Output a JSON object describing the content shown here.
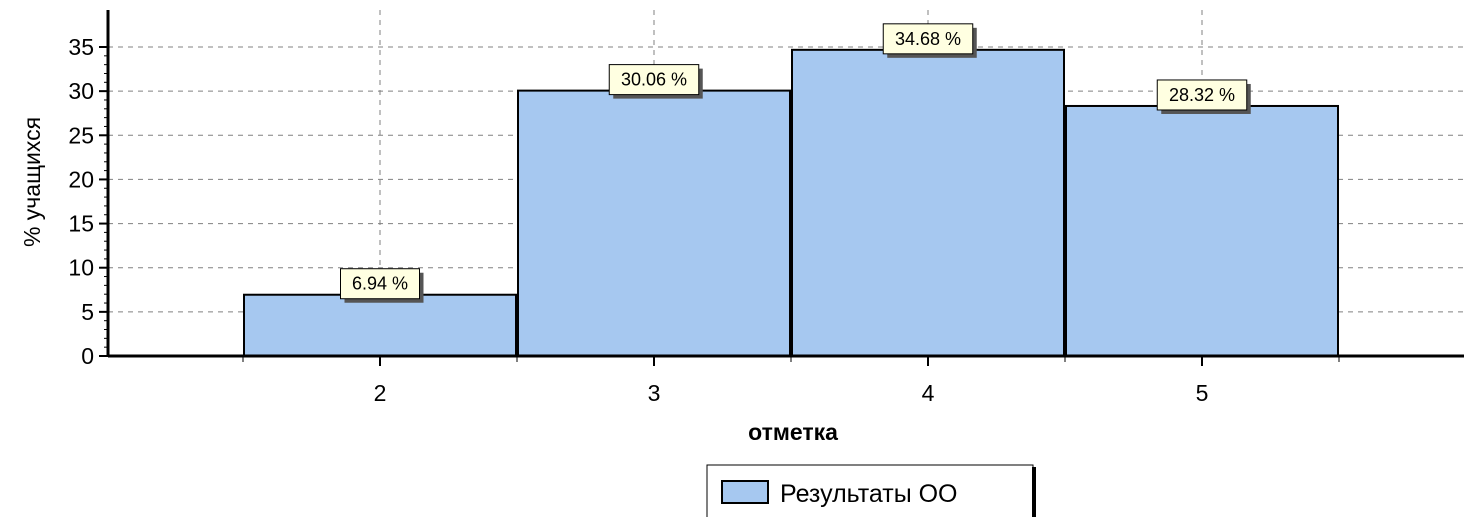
{
  "chart_data": {
    "type": "bar",
    "categories": [
      "2",
      "3",
      "4",
      "5"
    ],
    "x_axis": {
      "min": 1,
      "max": 6,
      "ticks": [
        2,
        3,
        4,
        5
      ]
    },
    "series": [
      {
        "name": "Результаты ОО",
        "values": [
          6.94,
          30.06,
          34.68,
          28.32
        ],
        "data_labels": [
          "6.94 %",
          "30.06 %",
          "34.68 %",
          "28.32 %"
        ],
        "color": "#a6c8f0"
      }
    ],
    "xlabel": "отметка",
    "ylabel": "% учащихся",
    "ylim": [
      0,
      35
    ],
    "yticks": [
      0,
      5,
      10,
      15,
      20,
      25,
      30,
      35
    ],
    "grid": true,
    "legend_position": "bottom-center",
    "colors": {
      "bar_fill": "#a6c8f0",
      "bar_stroke": "#000000",
      "label_bg": "#ffffe1",
      "grid": "#808080"
    }
  }
}
